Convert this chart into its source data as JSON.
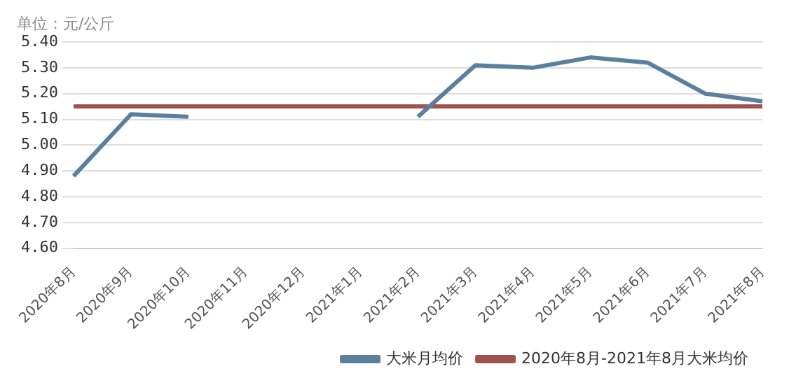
{
  "chart_data": {
    "type": "line",
    "ylabel": "单位：元/公斤",
    "categories": [
      "2020年8月",
      "2020年9月",
      "2020年10月",
      "2020年11月",
      "2020年12月",
      "2021年1月",
      "2021年2月",
      "2021年3月",
      "2021年4月",
      "2021年5月",
      "2021年6月",
      "2021年7月",
      "2021年8月"
    ],
    "series": [
      {
        "name": "大米月均价",
        "color": "#5b7f9f",
        "values": [
          4.88,
          5.12,
          5.11,
          null,
          null,
          null,
          5.11,
          5.31,
          5.3,
          5.34,
          5.32,
          5.2,
          5.17
        ]
      },
      {
        "name": "2020年8月-2021年8月大米均价",
        "color": "#a0524d",
        "values": [
          5.15,
          5.15,
          5.15,
          5.15,
          5.15,
          5.15,
          5.15,
          5.15,
          5.15,
          5.15,
          5.15,
          5.15,
          5.15
        ]
      }
    ],
    "ylim": [
      4.6,
      5.4
    ],
    "yticks": [
      {
        "value": 4.6,
        "label": "4.60"
      },
      {
        "value": 4.7,
        "label": "4.70"
      },
      {
        "value": 4.8,
        "label": "4.80"
      },
      {
        "value": 4.9,
        "label": "4.90"
      },
      {
        "value": 5.0,
        "label": "5.00"
      },
      {
        "value": 5.1,
        "label": "5.10"
      },
      {
        "value": 5.2,
        "label": "5.20"
      },
      {
        "value": 5.3,
        "label": "5.30"
      },
      {
        "value": 5.4,
        "label": "5.40"
      }
    ],
    "grid": "y",
    "legend": "bottom",
    "marker": "none",
    "line_style": "solid"
  }
}
